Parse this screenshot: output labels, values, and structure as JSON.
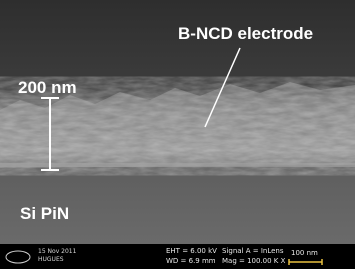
{
  "image": {
    "annotations": {
      "film": "B-NCD electrode",
      "scale": "200 nm",
      "substrate": "Si PiN"
    },
    "info_bar": {
      "date": "15 Nov 2011",
      "operator": "HUGUES",
      "eht": "EHT = 6.00 kV",
      "wd": "WD = 6.9 mm",
      "signal": "Signal A = InLens",
      "mag": "Mag = 100.00 K X",
      "scale_bar": "100 nm"
    }
  }
}
